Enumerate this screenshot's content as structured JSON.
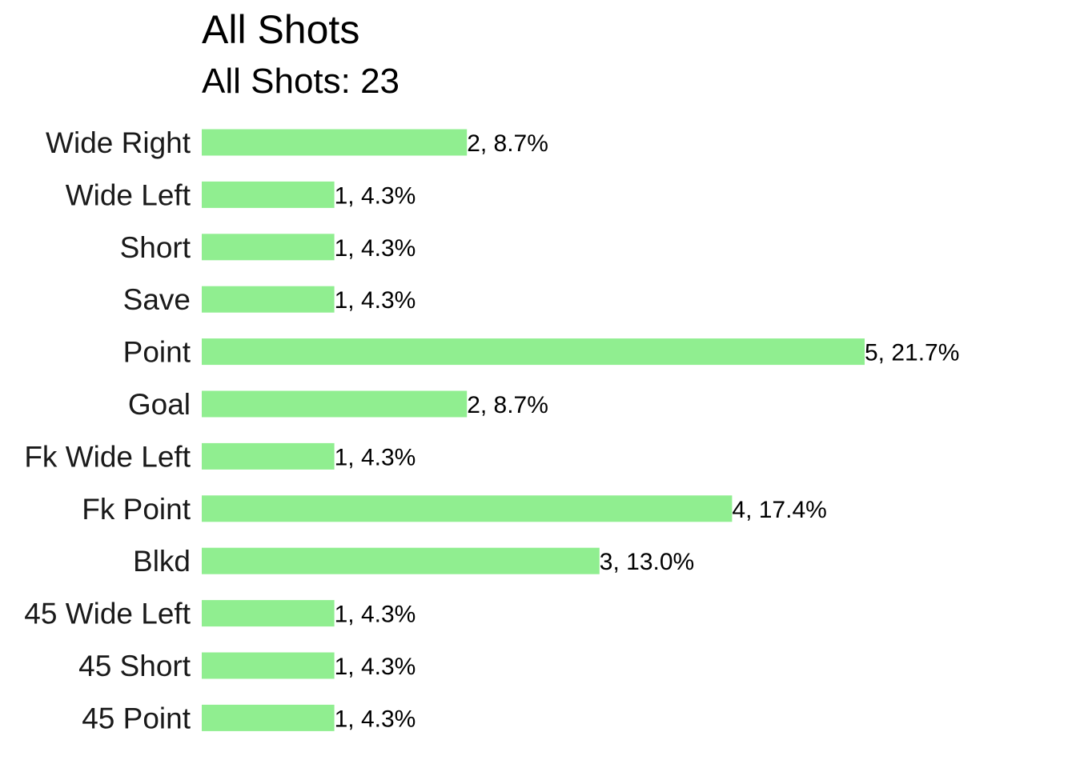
{
  "chart_data": {
    "type": "bar",
    "orientation": "horizontal",
    "title": "All Shots",
    "subtitle": "All Shots: 23",
    "categories": [
      "Wide Right",
      "Wide Left",
      "Short",
      "Save",
      "Point",
      "Goal",
      "Fk Wide Left",
      "Fk Point",
      "Blkd",
      "45 Wide Left",
      "45 Short",
      "45 Point"
    ],
    "values": [
      2,
      1,
      1,
      1,
      5,
      2,
      1,
      4,
      3,
      1,
      1,
      1
    ],
    "data_labels": [
      "2, 8.7%",
      "1, 4.3%",
      "1, 4.3%",
      "1, 4.3%",
      "5, 21.7%",
      "2, 8.7%",
      "1, 4.3%",
      "4, 17.4%",
      "3, 13.0%",
      "1, 4.3%",
      "1, 4.3%",
      "1, 4.3%"
    ],
    "xlim": [
      0,
      5
    ],
    "grid": false,
    "bar_color": "#90ee90"
  }
}
